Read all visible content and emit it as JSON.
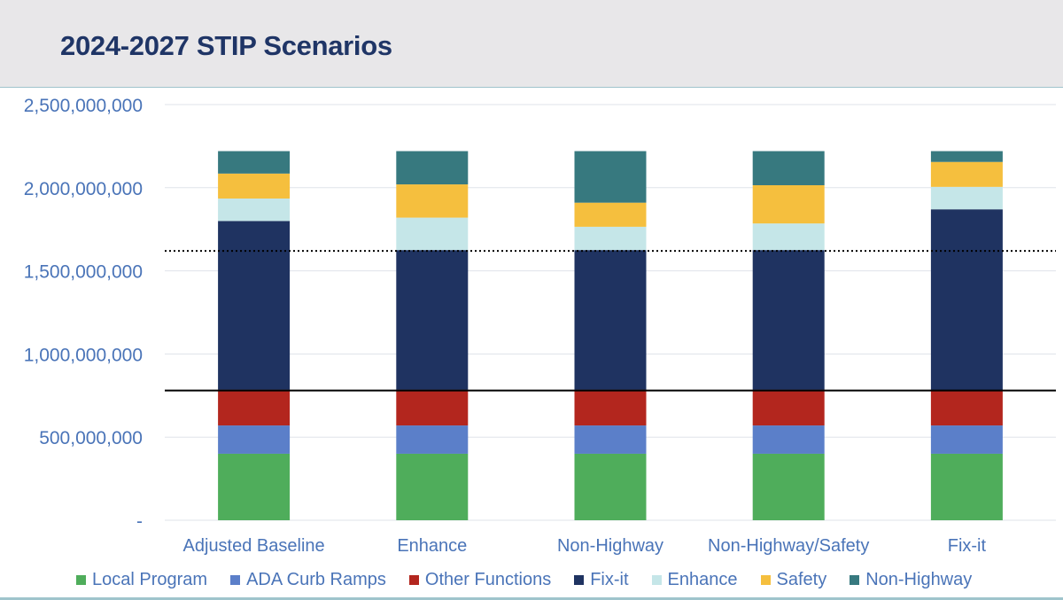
{
  "header": {
    "title": "2024-2027 STIP Scenarios"
  },
  "colors": {
    "header_bg": "#e8e7e9",
    "title": "#1f3566",
    "axis_text": "#4a74b8"
  },
  "chart_data": {
    "type": "bar",
    "stacked": true,
    "title": "",
    "xlabel": "",
    "ylabel": "",
    "ylim": [
      0,
      2500000000
    ],
    "yticks": [
      0,
      500000000,
      1000000000,
      1500000000,
      2000000000,
      2500000000
    ],
    "ytick_labels": [
      "-",
      "500,000,000",
      "1,000,000,000",
      "1,500,000,000",
      "2,000,000,000",
      "2,500,000,000"
    ],
    "grid": true,
    "legend_position": "bottom",
    "categories": [
      "Adjusted Baseline",
      "Enhance",
      "Non-Highway",
      "Non-Highway/Safety",
      "Fix-it"
    ],
    "series": [
      {
        "name": "Local Program",
        "color": "#4fad5b",
        "values": [
          400000000,
          400000000,
          400000000,
          400000000,
          400000000
        ]
      },
      {
        "name": "ADA Curb Ramps",
        "color": "#5b7fc9",
        "values": [
          170000000,
          170000000,
          170000000,
          170000000,
          170000000
        ]
      },
      {
        "name": "Other Functions",
        "color": "#b3261e",
        "values": [
          215000000,
          215000000,
          215000000,
          215000000,
          210000000
        ]
      },
      {
        "name": "Fix-it",
        "color": "#1f3361",
        "values": [
          1015000000,
          840000000,
          840000000,
          840000000,
          1090000000
        ]
      },
      {
        "name": "Enhance",
        "color": "#c5e6e8",
        "values": [
          135000000,
          195000000,
          140000000,
          160000000,
          135000000
        ]
      },
      {
        "name": "Safety",
        "color": "#f5bf3e",
        "values": [
          150000000,
          200000000,
          145000000,
          230000000,
          150000000
        ]
      },
      {
        "name": "Non-Highway",
        "color": "#37797f",
        "values": [
          135000000,
          200000000,
          310000000,
          205000000,
          65000000
        ]
      }
    ],
    "reference_lines": [
      {
        "value": 1620000000,
        "style": "dotted",
        "color": "#000000"
      },
      {
        "value": 780000000,
        "style": "solid",
        "color": "#000000"
      }
    ]
  }
}
